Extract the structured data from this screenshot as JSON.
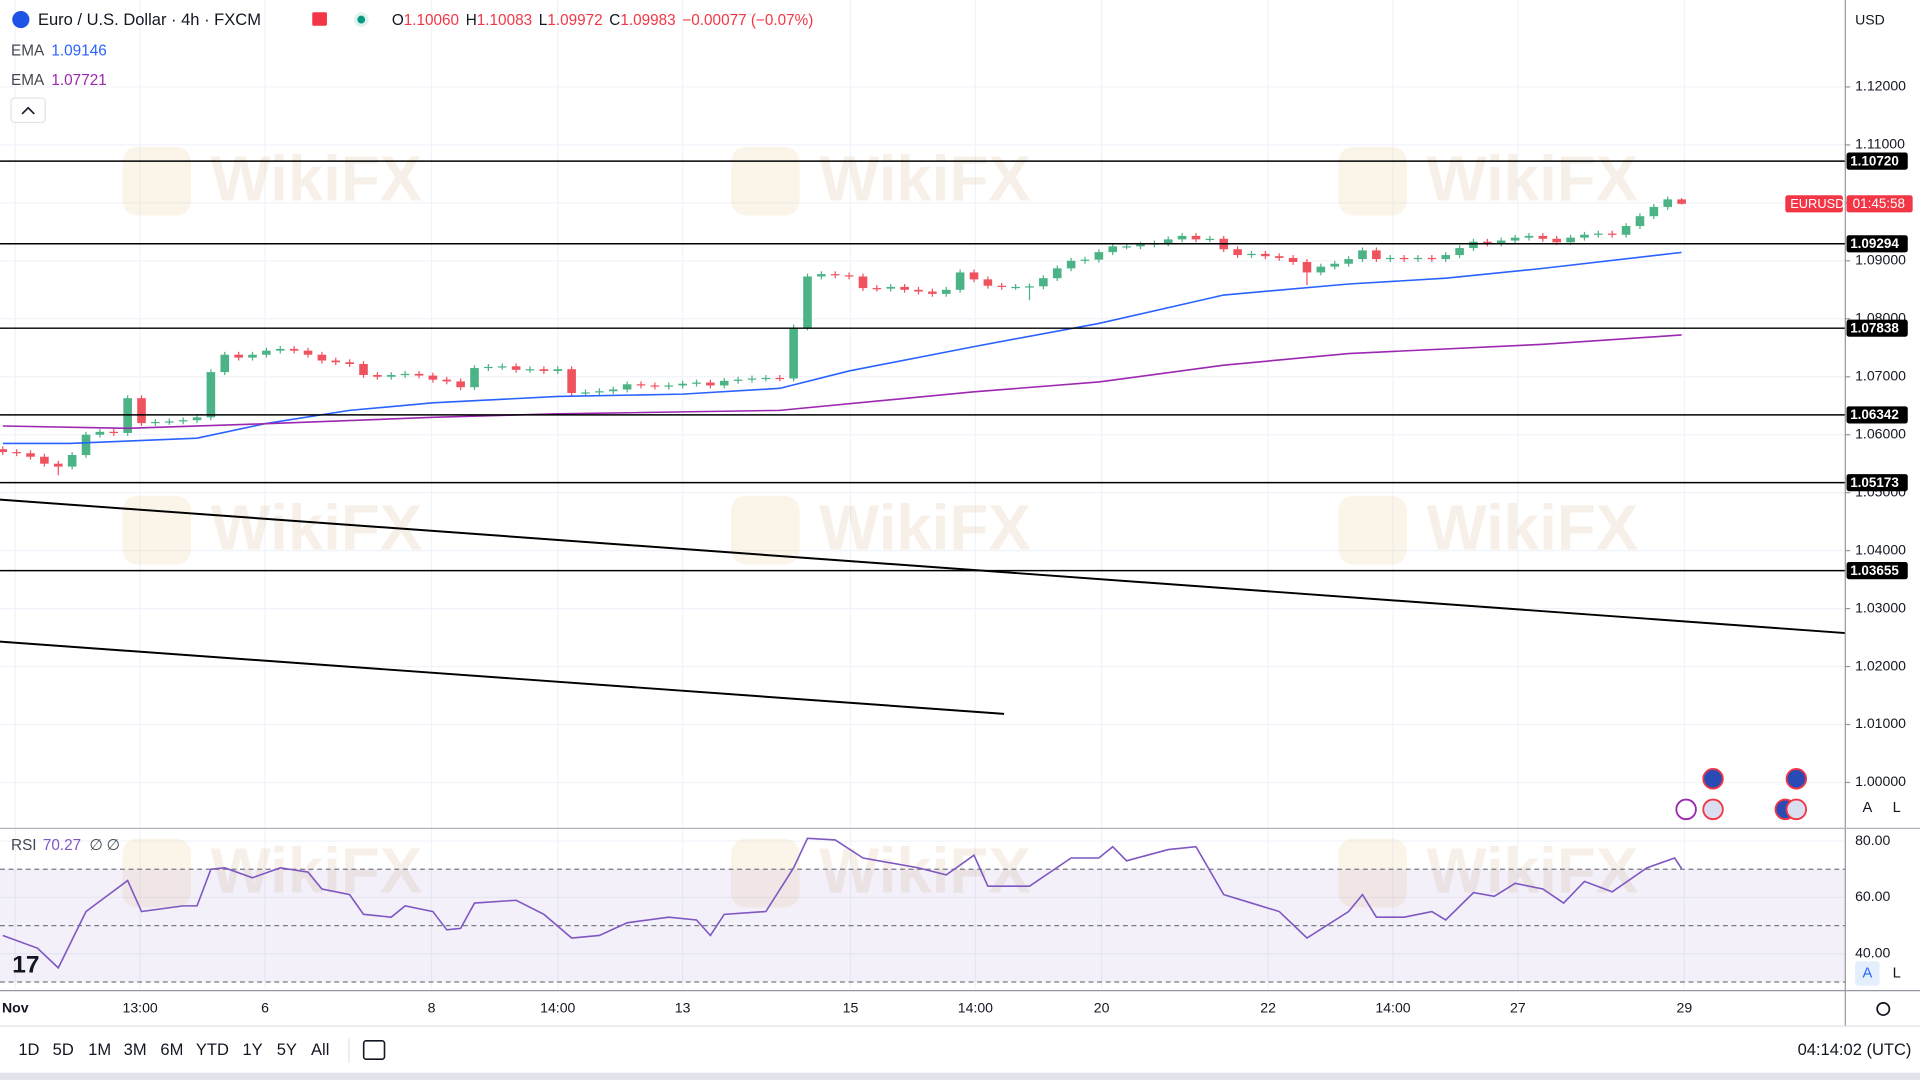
{
  "chart_data": [
    {
      "type": "candlestick",
      "title": "Euro / U.S. Dollar · 4h · FXCM",
      "header": [
        {
          "key": "O",
          "text": "1.10060"
        },
        {
          "key": "H",
          "text": "1.10083"
        },
        {
          "key": "L",
          "text": "1.09972"
        },
        {
          "key": "C",
          "text": "1.09983"
        }
      ],
      "change": "−0.00077 (−0.07%)",
      "currency": "USD",
      "watermark": "WikiFX",
      "up_color": "#4bb385",
      "down_color": "#ef5360",
      "price_tag": {
        "symbol": "EURUSD",
        "countdown": "01:45:58",
        "color": "#f23645"
      },
      "scale_buttons": [
        "A",
        "L"
      ],
      "xlim": [
        -0.2,
        132.8
      ],
      "ylim": [
        0.9924,
        1.135
      ],
      "grid": true,
      "xticks": [
        {
          "value": 0.9,
          "label": "Nov"
        },
        {
          "value": 9.9,
          "label": "13:00"
        },
        {
          "value": 18.9,
          "label": "6"
        },
        {
          "value": 30.9,
          "label": "8"
        },
        {
          "value": 40,
          "label": "14:00"
        },
        {
          "value": 49,
          "label": "13"
        },
        {
          "value": 61.1,
          "label": "15"
        },
        {
          "value": 70.1,
          "label": "14:00"
        },
        {
          "value": 79.2,
          "label": "20"
        },
        {
          "value": 91.2,
          "label": "22"
        },
        {
          "value": 100.2,
          "label": "14:00"
        },
        {
          "value": 109.2,
          "label": "27"
        },
        {
          "value": 121.2,
          "label": "29"
        }
      ],
      "yticks": [
        {
          "value": 1.0,
          "label": "1.00000"
        },
        {
          "value": 1.01,
          "label": "1.01000"
        },
        {
          "value": 1.02,
          "label": "1.02000"
        },
        {
          "value": 1.03,
          "label": "1.03000"
        },
        {
          "value": 1.04,
          "label": "1.04000"
        },
        {
          "value": 1.05,
          "label": "1.05000"
        },
        {
          "value": 1.06,
          "label": "1.06000"
        },
        {
          "value": 1.07,
          "label": "1.07000"
        },
        {
          "value": 1.08,
          "label": "1.08000"
        },
        {
          "value": 1.09,
          "label": "1.09000"
        },
        {
          "value": 1.1,
          "label": "1.10000"
        },
        {
          "value": 1.11,
          "label": "1.11000"
        },
        {
          "value": 1.12,
          "label": "1.12000"
        }
      ],
      "levels": [
        {
          "value": 1.1072,
          "label": "1.10720"
        },
        {
          "value": 1.09294,
          "label": "1.09294"
        },
        {
          "value": 1.07838,
          "label": "1.07838"
        },
        {
          "value": 1.06342,
          "label": "1.06342"
        },
        {
          "value": 1.05173,
          "label": "1.05173"
        },
        {
          "value": 1.03655,
          "label": "1.03655"
        }
      ],
      "open": [
        1.0575,
        1.057,
        1.0568,
        1.0562,
        1.055,
        1.0545,
        1.0565,
        1.06,
        1.0605,
        1.0603,
        1.0663,
        1.062,
        1.0622,
        1.0623,
        1.0625,
        1.063,
        1.0708,
        1.0738,
        1.0733,
        1.0738,
        1.0745,
        1.0748,
        1.0745,
        1.0738,
        1.0728,
        1.0725,
        1.0722,
        1.0703,
        1.07,
        1.0703,
        1.0705,
        1.0702,
        1.0695,
        1.0692,
        1.0682,
        1.0715,
        1.0717,
        1.0718,
        1.0712,
        1.0713,
        1.071,
        1.0713,
        1.0672,
        1.0673,
        1.0675,
        1.0678,
        1.0687,
        1.0685,
        1.0683,
        1.0685,
        1.0688,
        1.069,
        1.0685,
        1.0693,
        1.0695,
        1.0697,
        1.0698,
        1.0697,
        1.0785,
        1.0873,
        1.0877,
        1.0875,
        1.0873,
        1.0853,
        1.0852,
        1.0855,
        1.085,
        1.0847,
        1.0843,
        1.085,
        1.088,
        1.0868,
        1.0857,
        1.0855,
        1.0855,
        1.0856,
        1.087,
        1.0887,
        1.09,
        1.0902,
        1.0915,
        1.0925,
        1.0925,
        1.0928,
        1.093,
        1.0937,
        1.0943,
        1.0937,
        1.0938,
        1.092,
        1.091,
        1.0912,
        1.0908,
        1.0905,
        1.0898,
        1.088,
        1.089,
        1.0895,
        1.0903,
        1.0918,
        1.0903,
        1.0905,
        1.0903,
        1.0905,
        1.0903,
        1.091,
        1.0922,
        1.0933,
        1.093,
        1.0935,
        1.094,
        1.0943,
        1.0938,
        1.0932,
        1.094,
        1.0945,
        1.0947,
        1.0945,
        1.096,
        1.0977,
        1.0993,
        1.1006
      ],
      "high": [
        1.058,
        1.0575,
        1.0573,
        1.0567,
        1.0555,
        1.057,
        1.0605,
        1.061,
        1.061,
        1.0668,
        1.0668,
        1.0627,
        1.0628,
        1.063,
        1.0635,
        1.0713,
        1.0743,
        1.0743,
        1.0743,
        1.075,
        1.0753,
        1.0753,
        1.075,
        1.0743,
        1.0733,
        1.073,
        1.0727,
        1.0708,
        1.0708,
        1.071,
        1.071,
        1.0707,
        1.07,
        1.0697,
        1.072,
        1.0722,
        1.0723,
        1.0723,
        1.0718,
        1.0718,
        1.0718,
        1.0718,
        1.0678,
        1.068,
        1.0683,
        1.0692,
        1.0692,
        1.069,
        1.069,
        1.0693,
        1.0695,
        1.0695,
        1.0698,
        1.07,
        1.0702,
        1.0703,
        1.0703,
        1.079,
        1.0878,
        1.0882,
        1.0882,
        1.088,
        1.0878,
        1.0858,
        1.086,
        1.086,
        1.0855,
        1.0852,
        1.0855,
        1.0885,
        1.0885,
        1.0873,
        1.0862,
        1.086,
        1.0861,
        1.0875,
        1.0892,
        1.0905,
        1.0907,
        1.092,
        1.093,
        1.093,
        1.0933,
        1.0935,
        1.0942,
        1.0948,
        1.0948,
        1.0943,
        1.0943,
        1.0925,
        1.0917,
        1.0917,
        1.0913,
        1.091,
        1.0903,
        1.0895,
        1.09,
        1.0908,
        1.0923,
        1.0923,
        1.091,
        1.091,
        1.091,
        1.091,
        1.0915,
        1.0927,
        1.0938,
        1.0938,
        1.094,
        1.0945,
        1.0948,
        1.0948,
        1.0943,
        1.0945,
        1.095,
        1.0952,
        1.0952,
        1.0965,
        1.0982,
        1.0998,
        1.1011,
        1.10083
      ],
      "low": [
        1.0565,
        1.0563,
        1.0557,
        1.0545,
        1.053,
        1.054,
        1.056,
        1.0595,
        1.0598,
        1.0598,
        1.0615,
        1.0615,
        1.0617,
        1.0618,
        1.062,
        1.0625,
        1.0703,
        1.0728,
        1.0728,
        1.0733,
        1.074,
        1.074,
        1.0733,
        1.0723,
        1.072,
        1.0717,
        1.0698,
        1.0695,
        1.0695,
        1.0698,
        1.0697,
        1.069,
        1.0687,
        1.0677,
        1.0677,
        1.071,
        1.0712,
        1.0707,
        1.0707,
        1.0705,
        1.0705,
        1.0667,
        1.0667,
        1.0668,
        1.067,
        1.0673,
        1.068,
        1.0678,
        1.0678,
        1.068,
        1.0683,
        1.068,
        1.068,
        1.0688,
        1.069,
        1.0692,
        1.0692,
        1.0692,
        1.078,
        1.0868,
        1.087,
        1.0868,
        1.0848,
        1.0847,
        1.0847,
        1.0845,
        1.0842,
        1.0838,
        1.0838,
        1.0845,
        1.0863,
        1.0852,
        1.085,
        1.085,
        1.0832,
        1.0851,
        1.0865,
        1.0882,
        1.0895,
        1.0897,
        1.091,
        1.092,
        1.092,
        1.0923,
        1.0925,
        1.0932,
        1.0932,
        1.0932,
        1.0915,
        1.0905,
        1.0905,
        1.0903,
        1.09,
        1.0893,
        1.0858,
        1.0875,
        1.0885,
        1.089,
        1.0898,
        1.0898,
        1.0898,
        1.0898,
        1.0898,
        1.0898,
        1.0898,
        1.0905,
        1.0917,
        1.0925,
        1.0925,
        1.093,
        1.0935,
        1.0933,
        1.0927,
        1.0927,
        1.0935,
        1.094,
        1.094,
        1.094,
        1.0955,
        1.0972,
        1.0988,
        1.09972
      ],
      "close": [
        1.057,
        1.0568,
        1.0562,
        1.055,
        1.0545,
        1.0565,
        1.06,
        1.0605,
        1.0603,
        1.0663,
        1.062,
        1.0622,
        1.0623,
        1.0625,
        1.063,
        1.0708,
        1.0738,
        1.0733,
        1.0738,
        1.0745,
        1.0748,
        1.0745,
        1.0738,
        1.0728,
        1.0725,
        1.0722,
        1.0703,
        1.07,
        1.0703,
        1.0705,
        1.0702,
        1.0695,
        1.0692,
        1.0682,
        1.0715,
        1.0717,
        1.0718,
        1.0712,
        1.0713,
        1.071,
        1.0713,
        1.0672,
        1.0673,
        1.0675,
        1.0678,
        1.0687,
        1.0685,
        1.0683,
        1.0685,
        1.0688,
        1.069,
        1.0685,
        1.0693,
        1.0695,
        1.0697,
        1.0698,
        1.0697,
        1.0785,
        1.0873,
        1.0877,
        1.0875,
        1.0873,
        1.0853,
        1.0852,
        1.0855,
        1.085,
        1.0847,
        1.0843,
        1.085,
        1.088,
        1.0868,
        1.0857,
        1.0855,
        1.0855,
        1.0856,
        1.087,
        1.0887,
        1.09,
        1.0902,
        1.0915,
        1.0925,
        1.0925,
        1.0928,
        1.093,
        1.0937,
        1.0943,
        1.0937,
        1.0938,
        1.092,
        1.091,
        1.0912,
        1.0908,
        1.0905,
        1.0898,
        1.088,
        1.089,
        1.0895,
        1.0903,
        1.0918,
        1.0903,
        1.0905,
        1.0903,
        1.0905,
        1.0903,
        1.091,
        1.0922,
        1.0933,
        1.093,
        1.0935,
        1.094,
        1.0943,
        1.0938,
        1.0932,
        1.094,
        1.0945,
        1.0947,
        1.0945,
        1.096,
        1.0977,
        1.0993,
        1.1006,
        1.09983
      ],
      "series": [
        {
          "name": "EMA",
          "color": "#2962ff",
          "value_label": "1.09146",
          "x": [
            0,
            4.8,
            9,
            14,
            18.9,
            25,
            31,
            40,
            49,
            56,
            61,
            70,
            79,
            88,
            97,
            104,
            111,
            121
          ],
          "values": [
            1.0585,
            1.0585,
            1.0589,
            1.0594,
            1.0619,
            1.0642,
            1.0655,
            1.0666,
            1.067,
            1.068,
            1.071,
            1.0752,
            1.0792,
            1.0841,
            1.086,
            1.087,
            1.0887,
            1.09146
          ]
        },
        {
          "name": "EMA",
          "color": "#9c27b0",
          "value_label": "1.07721",
          "x": [
            0,
            9,
            19,
            31,
            40,
            56,
            70,
            79,
            88,
            97,
            111,
            121
          ],
          "values": [
            1.0615,
            1.0611,
            1.0619,
            1.063,
            1.0636,
            1.0642,
            1.0674,
            1.0691,
            1.072,
            1.074,
            1.0756,
            1.07721
          ]
        }
      ]
    },
    {
      "type": "line",
      "name": "RSI",
      "value_label": "70.27",
      "inputs": [
        "∅",
        "∅"
      ],
      "color": "#7e57c2",
      "xlim": [
        -0.2,
        132.8
      ],
      "ylim": [
        27.8,
        84.3
      ],
      "yticks": [
        {
          "value": 40,
          "label": "40.00"
        },
        {
          "value": 60,
          "label": "60.00"
        },
        {
          "value": 80,
          "label": "80.00"
        }
      ],
      "levels": [
        70,
        50,
        30
      ],
      "x": [
        0,
        2.5,
        4,
        6,
        9,
        10,
        13,
        14,
        15,
        16,
        18,
        20,
        22,
        23,
        25,
        26,
        28,
        29,
        31,
        32,
        33,
        34,
        37,
        39,
        41,
        43,
        45,
        48,
        50,
        51,
        52,
        55,
        57,
        58,
        60,
        62,
        66,
        68,
        70,
        71,
        74,
        77,
        79,
        80,
        81,
        84,
        86,
        88,
        90,
        92,
        94,
        97,
        98,
        99,
        101,
        103,
        104,
        106,
        107.5,
        109,
        111,
        112.5,
        114,
        116,
        118.5,
        120.5,
        121
      ],
      "values": [
        46.5,
        42,
        35,
        55,
        66,
        55,
        57,
        57,
        70,
        70.5,
        67,
        70.5,
        69,
        63,
        61,
        54,
        53,
        57,
        55,
        48.5,
        49,
        58,
        59,
        54,
        45.6,
        46.5,
        51,
        53,
        52,
        46.5,
        54,
        55,
        70.5,
        81,
        80.4,
        74,
        70.5,
        68,
        75,
        64,
        64,
        74,
        74,
        78,
        73,
        77,
        78,
        61,
        58,
        55,
        45.6,
        55,
        61,
        53,
        53,
        55,
        52,
        61.7,
        60.4,
        65,
        63,
        58,
        65.7,
        62,
        70.5,
        74,
        70.27
      ]
    }
  ],
  "toolbar": {
    "ranges": [
      "1D",
      "5D",
      "1M",
      "3M",
      "6M",
      "YTD",
      "1Y",
      "5Y",
      "All"
    ],
    "clock": "04:14:02 (UTC)"
  }
}
